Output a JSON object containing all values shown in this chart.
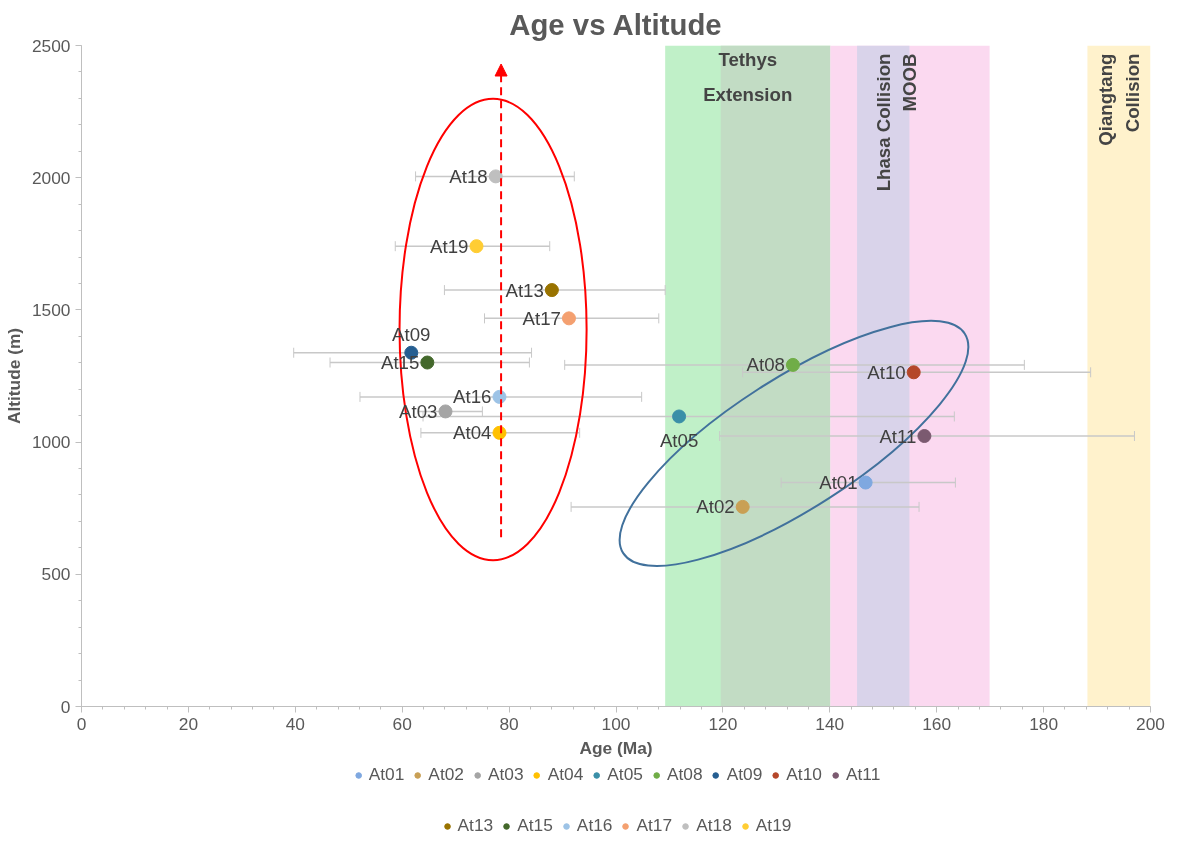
{
  "chart_data": {
    "type": "scatter",
    "title": "Age vs Altitude",
    "xlabel": "Age (Ma)",
    "ylabel": "Altitude (m)",
    "xlim": [
      0,
      200
    ],
    "xticks": [
      0,
      20,
      40,
      60,
      80,
      100,
      120,
      140,
      160,
      180,
      200
    ],
    "ylim": [
      0,
      2500
    ],
    "yticks": [
      0,
      500,
      1000,
      1500,
      2000,
      2500
    ],
    "grid": false,
    "legend": "bottom",
    "marker": "circle",
    "data_labels": false,
    "series": [
      {
        "name": "At01",
        "color": "#7fa8e0",
        "x": [
          146.7
        ],
        "values": [
          847
        ],
        "xerrors": [
          [
            130.9,
            163.5
          ]
        ]
      },
      {
        "name": "At02",
        "color": "#c9a055",
        "x": [
          123.7
        ],
        "values": [
          755
        ],
        "xerrors": [
          [
            91.6,
            156.7
          ]
        ]
      },
      {
        "name": "At03",
        "color": "#a5a5a5",
        "x": [
          68.1
        ],
        "values": [
          1116
        ],
        "xerrors": [
          [
            63,
            75
          ]
        ]
      },
      {
        "name": "At04",
        "color": "#ffc000",
        "x": [
          78.2
        ],
        "values": [
          1035
        ],
        "xerrors": [
          [
            63.5,
            93.2
          ]
        ]
      },
      {
        "name": "At05",
        "color": "#3a8fa8",
        "x": [
          111.8
        ],
        "values": [
          1097
        ],
        "xerrors": [
          [
            63.9,
            163.3
          ]
        ]
      },
      {
        "name": "At08",
        "color": "#70ad47",
        "x": [
          133.1
        ],
        "values": [
          1292
        ],
        "xerrors": [
          [
            90.4,
            176.4
          ]
        ]
      },
      {
        "name": "At09",
        "color": "#255e91",
        "x": [
          61.7
        ],
        "values": [
          1338
        ],
        "xerrors": [
          [
            39.7,
            84.2
          ]
        ]
      },
      {
        "name": "At10",
        "color": "#b5472a",
        "x": [
          155.7
        ],
        "values": [
          1264
        ],
        "xerrors": [
          [
            123.7,
            188.8
          ]
        ]
      },
      {
        "name": "At11",
        "color": "#7b5a70",
        "x": [
          157.7
        ],
        "values": [
          1023
        ],
        "xerrors": [
          [
            119.4,
            197
          ]
        ]
      },
      {
        "name": "At13",
        "color": "#997300",
        "x": [
          88
        ],
        "values": [
          1575
        ],
        "xerrors": [
          [
            67.9,
            109.2
          ]
        ]
      },
      {
        "name": "At15",
        "color": "#43682b",
        "x": [
          64.7
        ],
        "values": [
          1301
        ],
        "xerrors": [
          [
            46.5,
            83.8
          ]
        ]
      },
      {
        "name": "At16",
        "color": "#9dc3e6",
        "x": [
          78.2
        ],
        "values": [
          1171
        ],
        "xerrors": [
          [
            52.1,
            104.8
          ]
        ]
      },
      {
        "name": "At17",
        "color": "#f4a070",
        "x": [
          91.2
        ],
        "values": [
          1468
        ],
        "xerrors": [
          [
            75.4,
            108
          ]
        ]
      },
      {
        "name": "At18",
        "color": "#bfbfbf",
        "x": [
          77.5
        ],
        "values": [
          2005
        ],
        "xerrors": [
          [
            62.5,
            92.2
          ]
        ]
      },
      {
        "name": "At19",
        "color": "#ffcd33",
        "x": [
          73.9
        ],
        "values": [
          1741
        ],
        "xerrors": [
          [
            58.7,
            87.6
          ]
        ]
      }
    ],
    "bands": [
      {
        "axis": "x",
        "from": 109.2,
        "to": 140.1,
        "label": "Tethys Extension",
        "color": "#c0f0c8"
      },
      {
        "axis": "x",
        "from": 119.6,
        "to": 140.1,
        "label": null,
        "color": "#c2dcc4"
      },
      {
        "axis": "x",
        "from": 140.1,
        "to": 169.9,
        "label": "MOOB",
        "color": "#fbd9f0"
      },
      {
        "axis": "x",
        "from": 145.1,
        "to": 154.9,
        "label": "Lhasa Collision",
        "color": "#d9d3ea"
      },
      {
        "axis": "x",
        "from": 188.2,
        "to": 200,
        "label": "Qiangtang Collision",
        "color": "#fff2cc"
      }
    ]
  }
}
